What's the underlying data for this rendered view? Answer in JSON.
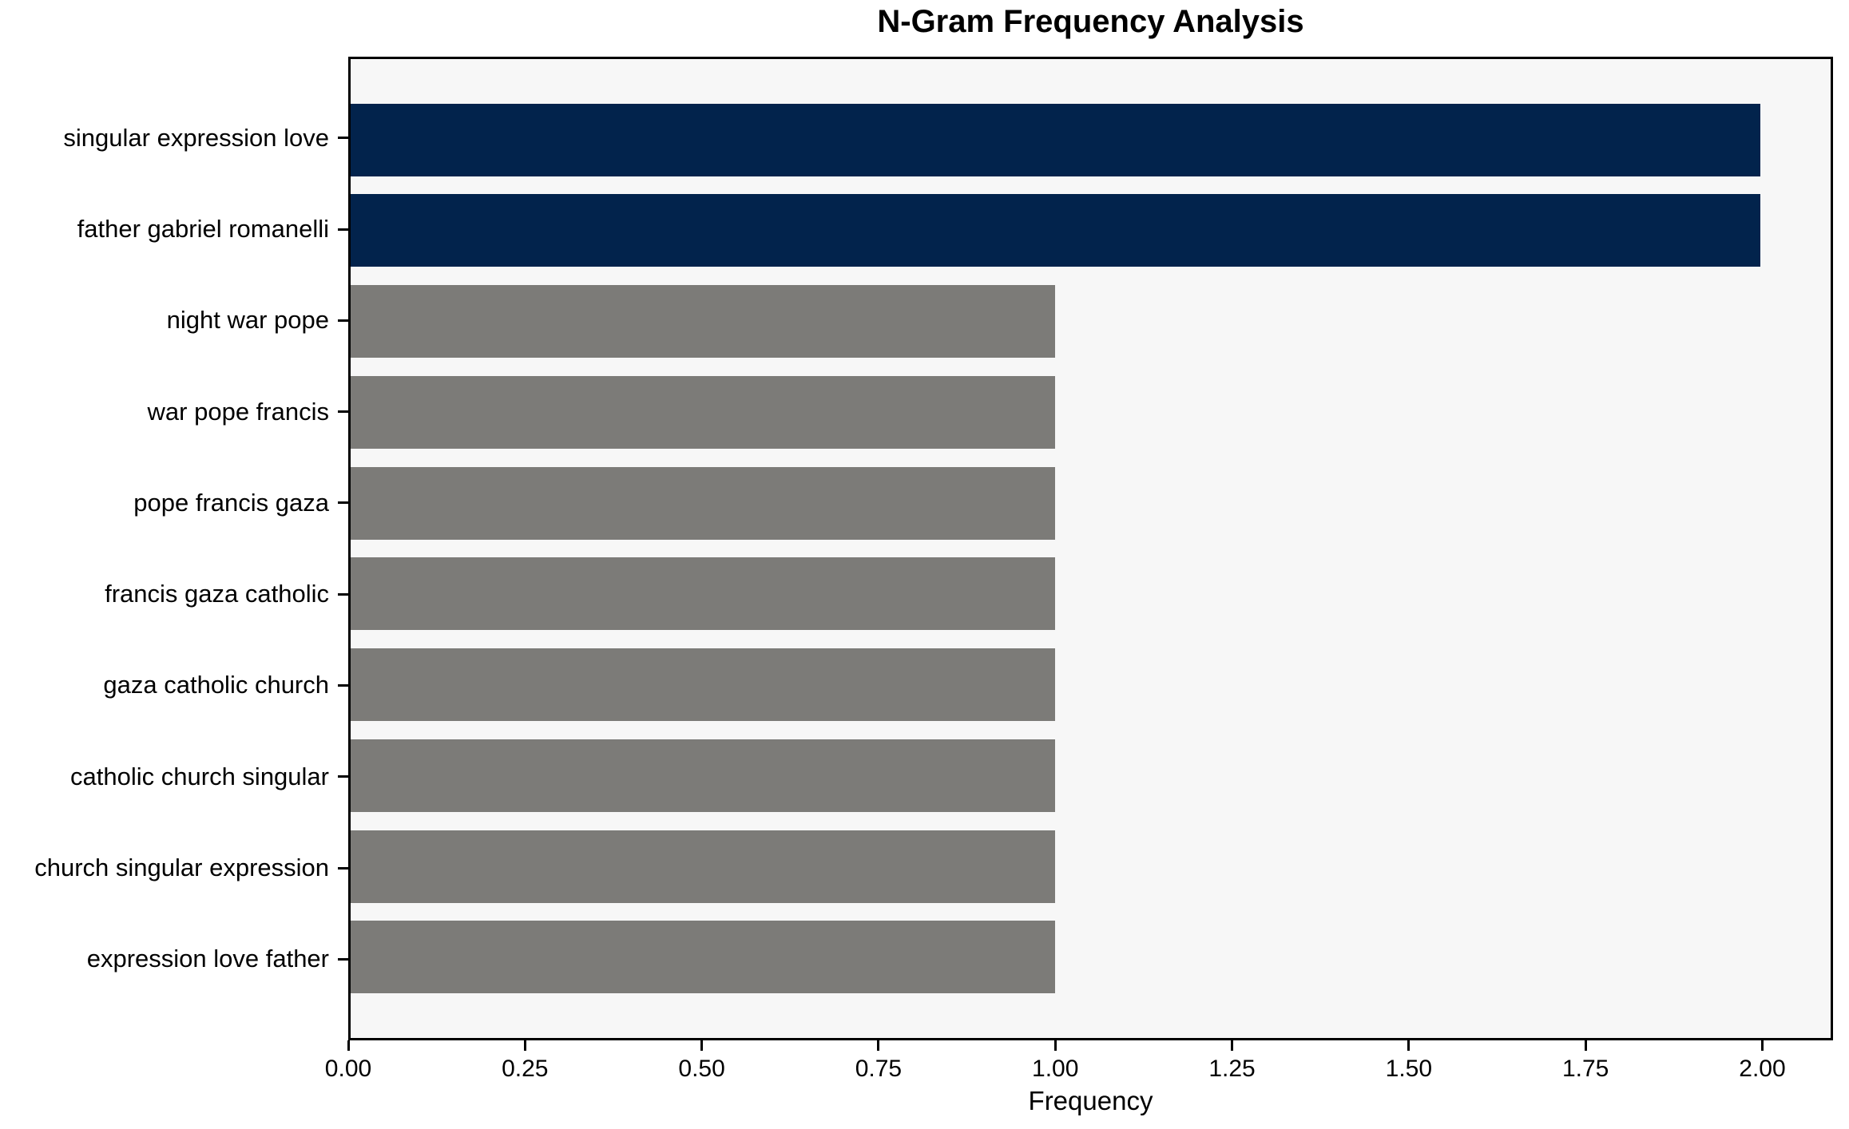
{
  "title": "N-Gram Frequency Analysis",
  "chart_data": {
    "type": "bar",
    "orientation": "horizontal",
    "title": "N-Gram Frequency Analysis",
    "xlabel": "Frequency",
    "ylabel": "",
    "categories": [
      "singular expression love",
      "father gabriel romanelli",
      "night war pope",
      "war pope francis",
      "pope francis gaza",
      "francis gaza catholic",
      "gaza catholic church",
      "catholic church singular",
      "church singular expression",
      "expression love father"
    ],
    "values": [
      2,
      2,
      1,
      1,
      1,
      1,
      1,
      1,
      1,
      1
    ],
    "colors": [
      "#02234c",
      "#02234c",
      "#7c7b78",
      "#7c7b78",
      "#7c7b78",
      "#7c7b78",
      "#7c7b78",
      "#7c7b78",
      "#7c7b78",
      "#7c7b78"
    ],
    "highlight_color": "#02234c",
    "base_color": "#7c7b78",
    "plot_background": "#f7f7f7",
    "figure_background": "#ffffff",
    "xlim": [
      0,
      2.1
    ],
    "xticks": [
      0,
      0.25,
      0.5,
      0.75,
      1.0,
      1.25,
      1.5,
      1.75,
      2.0
    ],
    "xtick_labels": [
      "0.00",
      "0.25",
      "0.50",
      "0.75",
      "1.00",
      "1.25",
      "1.50",
      "1.75",
      "2.00"
    ],
    "bar_height": 0.8,
    "y_margin": 0.89,
    "grid": false,
    "legend": null
  }
}
